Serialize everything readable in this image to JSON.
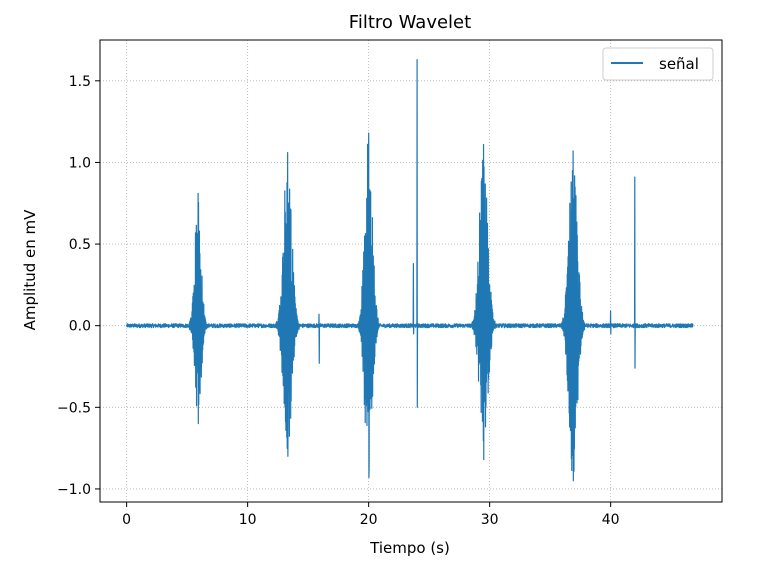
{
  "chart_data": {
    "type": "line",
    "title": "Filtro Wavelet",
    "xlabel": "Tiempo (s)",
    "ylabel": "Amplitud en mV",
    "xlim": [
      -2.2,
      49.2
    ],
    "ylim": [
      -1.08,
      1.75
    ],
    "x_ticks": [
      0,
      10,
      20,
      30,
      40
    ],
    "x_tick_labels": [
      "0",
      "10",
      "20",
      "30",
      "40"
    ],
    "y_ticks": [
      -1.0,
      -0.5,
      0.0,
      0.5,
      1.0,
      1.5
    ],
    "y_tick_labels": [
      "−1.0",
      "−0.5",
      "0.0",
      "0.5",
      "1.0",
      "1.5"
    ],
    "grid": true,
    "grid_style": "dotted",
    "legend_position": "top-right",
    "series": [
      {
        "name": "señal",
        "color": "#1f77b4",
        "x_range": [
          0.0,
          46.8
        ],
        "baseline_noise_mV": 0.012,
        "bursts": [
          {
            "center": 5.9,
            "width": 0.45,
            "max": 0.81,
            "min": -0.6
          },
          {
            "center": 13.3,
            "width": 0.6,
            "max": 1.06,
            "min": -0.8
          },
          {
            "center": 20.0,
            "width": 0.55,
            "max": 1.18,
            "min": -0.93
          },
          {
            "center": 29.5,
            "width": 0.6,
            "max": 1.11,
            "min": -0.82
          },
          {
            "center": 36.9,
            "width": 0.6,
            "max": 1.07,
            "min": -0.95
          }
        ],
        "spikes": [
          {
            "x": 15.9,
            "max": 0.07,
            "min": -0.23
          },
          {
            "x": 23.7,
            "max": 0.38,
            "min": -0.05
          },
          {
            "x": 24.0,
            "max": 1.63,
            "min": -0.5
          },
          {
            "x": 40.0,
            "max": 0.09,
            "min": -0.05
          },
          {
            "x": 42.0,
            "max": 0.91,
            "min": -0.26
          }
        ]
      }
    ]
  }
}
